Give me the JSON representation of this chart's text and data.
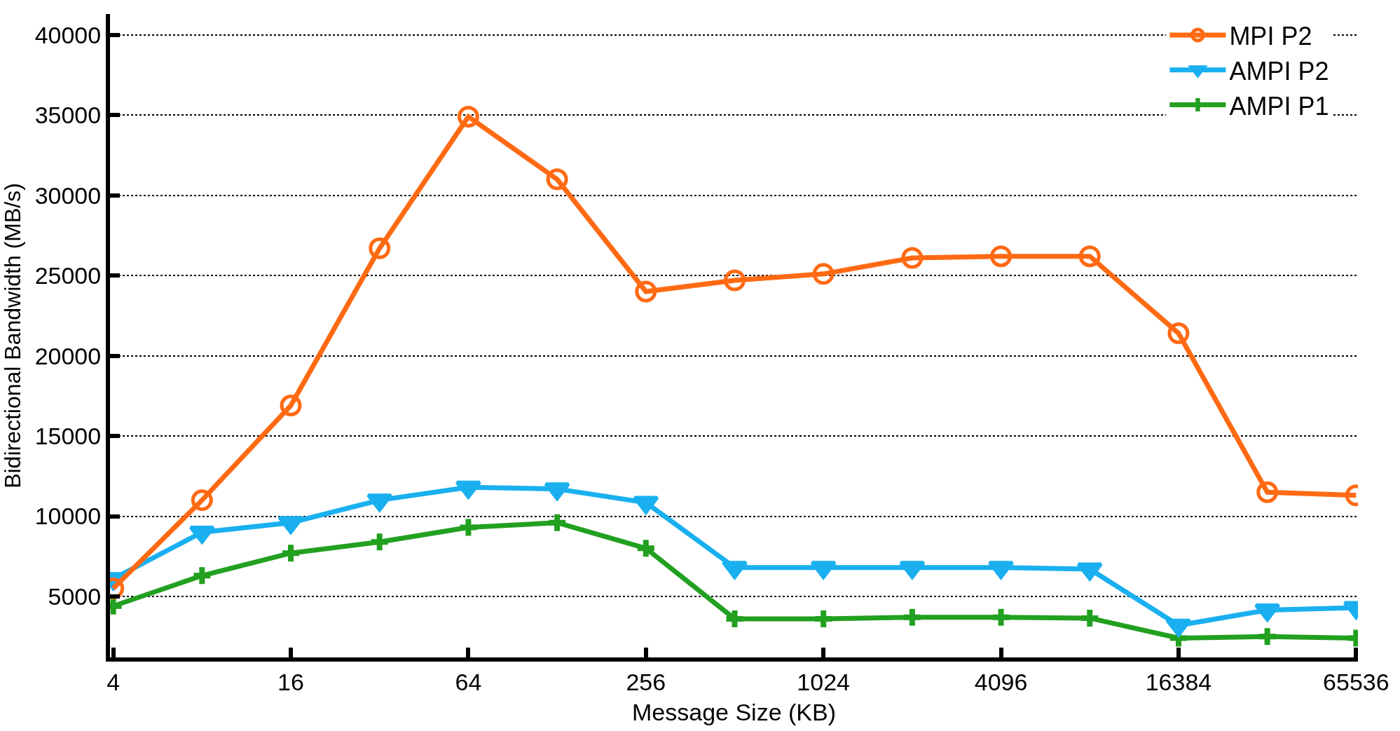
{
  "chart_data": {
    "type": "line",
    "xlabel": "Message Size (KB)",
    "ylabel": "Bidirectional Bandwidth (MB/s)",
    "x": [
      4,
      8,
      16,
      32,
      64,
      128,
      256,
      512,
      1024,
      2048,
      4096,
      8192,
      16384,
      32768,
      65536
    ],
    "log": "x",
    "xlim": [
      3.9,
      66500
    ],
    "xticks": [
      4,
      16,
      64,
      256,
      1024,
      4096,
      16384,
      65536
    ],
    "ylim": [
      1200,
      41300
    ],
    "yticks": [
      5000,
      10000,
      15000,
      20000,
      25000,
      30000,
      35000,
      40000
    ],
    "grid": "y",
    "legend": "top right",
    "series": [
      {
        "name": "MPI P2",
        "color": "#ff6a13",
        "marker": "circle",
        "values": [
          5500,
          11000,
          16900,
          26700,
          34900,
          31000,
          24000,
          24700,
          25100,
          26100,
          26200,
          26200,
          21400,
          11500,
          11300
        ]
      },
      {
        "name": "AMPI P2",
        "color": "#1ab0f0",
        "marker": "triangle",
        "values": [
          6100,
          9000,
          9600,
          11000,
          11800,
          11700,
          10850,
          6800,
          6800,
          6800,
          6800,
          6700,
          3200,
          4150,
          4300
        ]
      },
      {
        "name": "AMPI P1",
        "color": "#22a020",
        "marker": "cross",
        "values": [
          4400,
          6300,
          7700,
          8400,
          9300,
          9600,
          8000,
          3600,
          3600,
          3700,
          3700,
          3650,
          2400,
          2500,
          2400
        ]
      }
    ]
  }
}
